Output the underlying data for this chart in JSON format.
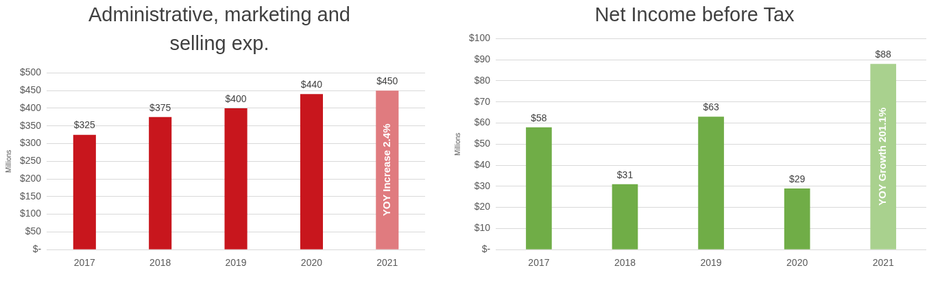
{
  "chart_data": [
    {
      "type": "bar",
      "title": "Administrative, marketing and selling exp.",
      "ylabel": "Millions",
      "categories": [
        "2017",
        "2018",
        "2019",
        "2020",
        "2021"
      ],
      "values": [
        325,
        375,
        400,
        440,
        450
      ],
      "colors": [
        "#c8161d",
        "#c8161d",
        "#c8161d",
        "#c8161d",
        "#e07b7f"
      ],
      "value_labels": [
        "$325",
        "$375",
        "$400",
        "$440",
        "$450"
      ],
      "ylim": [
        0,
        500
      ],
      "yticks": [
        {
          "value": 0,
          "label": "$-"
        },
        {
          "value": 50,
          "label": "$50"
        },
        {
          "value": 100,
          "label": "$100"
        },
        {
          "value": 150,
          "label": "$150"
        },
        {
          "value": 200,
          "label": "$200"
        },
        {
          "value": 250,
          "label": "$250"
        },
        {
          "value": 300,
          "label": "$300"
        },
        {
          "value": 350,
          "label": "$350"
        },
        {
          "value": 400,
          "label": "$400"
        },
        {
          "value": 450,
          "label": "$450"
        },
        {
          "value": 500,
          "label": "$500"
        }
      ],
      "grid": "y",
      "annotations": [
        "YOY Increase 2.4%"
      ]
    },
    {
      "type": "bar",
      "title": "Net Income before Tax",
      "ylabel": "Millions",
      "categories": [
        "2017",
        "2018",
        "2019",
        "2020",
        "2021"
      ],
      "values": [
        58,
        31,
        63,
        29,
        88
      ],
      "colors": [
        "#70ad47",
        "#70ad47",
        "#70ad47",
        "#70ad47",
        "#a9d18e"
      ],
      "value_labels": [
        "$58",
        "$31",
        "$63",
        "$29",
        "$88"
      ],
      "ylim": [
        0,
        100
      ],
      "yticks": [
        {
          "value": 0,
          "label": "$-"
        },
        {
          "value": 10,
          "label": "$10"
        },
        {
          "value": 20,
          "label": "$20"
        },
        {
          "value": 30,
          "label": "$30"
        },
        {
          "value": 40,
          "label": "$40"
        },
        {
          "value": 50,
          "label": "$50"
        },
        {
          "value": 60,
          "label": "$60"
        },
        {
          "value": 70,
          "label": "$70"
        },
        {
          "value": 80,
          "label": "$80"
        },
        {
          "value": 90,
          "label": "$90"
        },
        {
          "value": 100,
          "label": "$100"
        }
      ],
      "grid": "y",
      "annotations": [
        "YOY Growth 201.1%"
      ]
    }
  ]
}
